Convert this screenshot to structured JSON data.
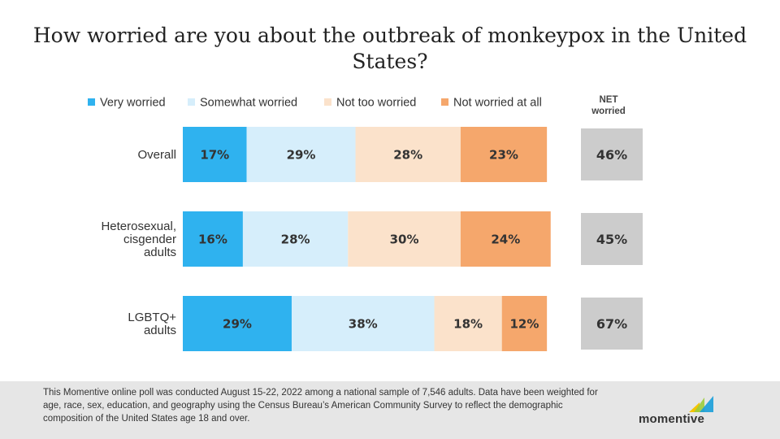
{
  "title": "How worried are you about the outbreak of monkeypox in the United States?",
  "net_header": "NET\nworried",
  "footnote": "This Momentive online poll was conducted August 15-22, 2022 among a national sample of 7,546 adults. Data have been weighted for age, race, sex, education, and geography using the Census Bureau’s American Community Survey to reflect the demographic composition of the United States age 18 and over.",
  "brand": "momentive",
  "colors": {
    "very_worried": "#2fb2ef",
    "somewhat_worried": "#d6eefb",
    "not_too_worried": "#fbe2cb",
    "not_worried_at_all": "#f5a76c",
    "net_box": "#cccccc"
  },
  "chart_data": {
    "type": "bar",
    "orientation": "horizontal",
    "stacked": true,
    "categories": [
      "Overall",
      "Heterosexual,\ncisgender\nadults",
      "LGBTQ+\nadults"
    ],
    "series": [
      {
        "name": "Very worried",
        "values": [
          17,
          16,
          29
        ]
      },
      {
        "name": "Somewhat worried",
        "values": [
          29,
          28,
          38
        ]
      },
      {
        "name": "Not too worried",
        "values": [
          28,
          30,
          18
        ]
      },
      {
        "name": "Not worried at all",
        "values": [
          23,
          24,
          12
        ]
      }
    ],
    "net_worried": [
      46,
      45,
      67
    ],
    "legend_position": "top",
    "grid": false
  }
}
